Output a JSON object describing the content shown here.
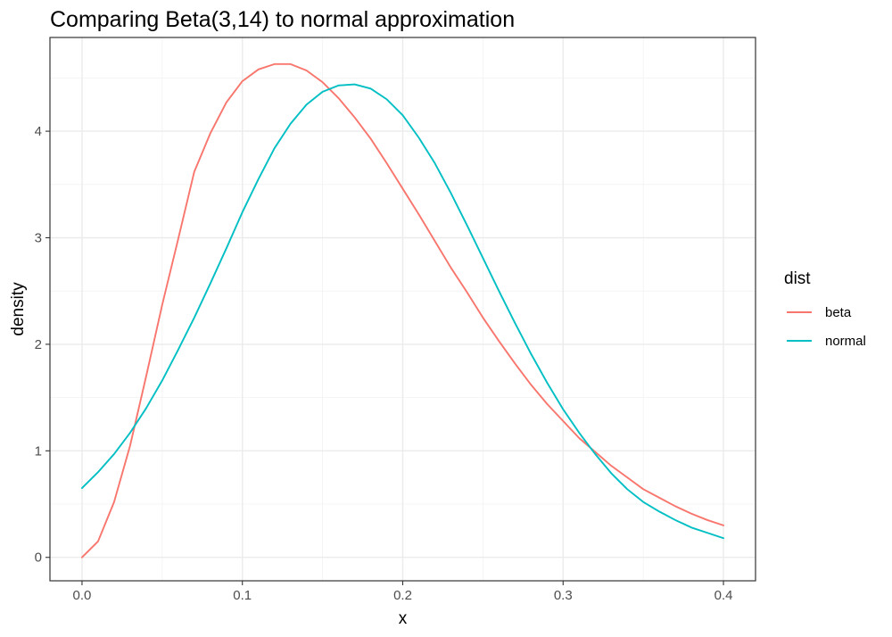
{
  "chart_data": {
    "type": "line",
    "title": "Comparing Beta(3,14) to normal approximation",
    "xlabel": "x",
    "ylabel": "density",
    "xlim": [
      -0.02,
      0.42
    ],
    "ylim": [
      -0.22,
      4.88
    ],
    "x_ticks": [
      0.0,
      0.1,
      0.2,
      0.3,
      0.4
    ],
    "x_tick_labels": [
      "0.0",
      "0.1",
      "0.2",
      "0.3",
      "0.4"
    ],
    "y_ticks": [
      0,
      1,
      2,
      3,
      4
    ],
    "y_tick_labels": [
      "0",
      "1",
      "2",
      "3",
      "4"
    ],
    "x_minor_ticks": [
      0.05,
      0.15,
      0.25,
      0.35
    ],
    "y_minor_ticks": [
      0.5,
      1.5,
      2.5,
      3.5,
      4.5
    ],
    "grid": true,
    "legend": {
      "title": "dist",
      "position": "right"
    },
    "x": [
      0.0,
      0.01,
      0.02,
      0.03,
      0.04,
      0.05,
      0.06,
      0.07,
      0.08,
      0.09,
      0.1,
      0.11,
      0.12,
      0.13,
      0.14,
      0.15,
      0.16,
      0.17,
      0.18,
      0.19,
      0.2,
      0.21,
      0.22,
      0.23,
      0.24,
      0.25,
      0.26,
      0.27,
      0.28,
      0.29,
      0.3,
      0.31,
      0.32,
      0.33,
      0.34,
      0.35,
      0.36,
      0.37,
      0.38,
      0.39,
      0.4
    ],
    "series": [
      {
        "name": "beta",
        "color": "#F8766D",
        "values": [
          0.0,
          0.15,
          0.52,
          1.05,
          1.7,
          2.37,
          2.99,
          3.62,
          3.98,
          4.27,
          4.47,
          4.58,
          4.63,
          4.63,
          4.57,
          4.46,
          4.31,
          4.13,
          3.93,
          3.7,
          3.46,
          3.22,
          2.97,
          2.72,
          2.49,
          2.25,
          2.03,
          1.82,
          1.62,
          1.44,
          1.28,
          1.12,
          0.99,
          0.86,
          0.75,
          0.64,
          0.56,
          0.48,
          0.41,
          0.35,
          0.3
        ]
      },
      {
        "name": "normal",
        "color": "#00BFC4",
        "values": [
          0.65,
          0.8,
          0.97,
          1.17,
          1.4,
          1.66,
          1.95,
          2.25,
          2.57,
          2.9,
          3.24,
          3.55,
          3.84,
          4.07,
          4.25,
          4.37,
          4.43,
          4.44,
          4.4,
          4.3,
          4.15,
          3.94,
          3.7,
          3.42,
          3.12,
          2.81,
          2.5,
          2.2,
          1.91,
          1.64,
          1.39,
          1.17,
          0.97,
          0.79,
          0.64,
          0.52,
          0.43,
          0.35,
          0.28,
          0.23,
          0.18
        ]
      }
    ]
  }
}
